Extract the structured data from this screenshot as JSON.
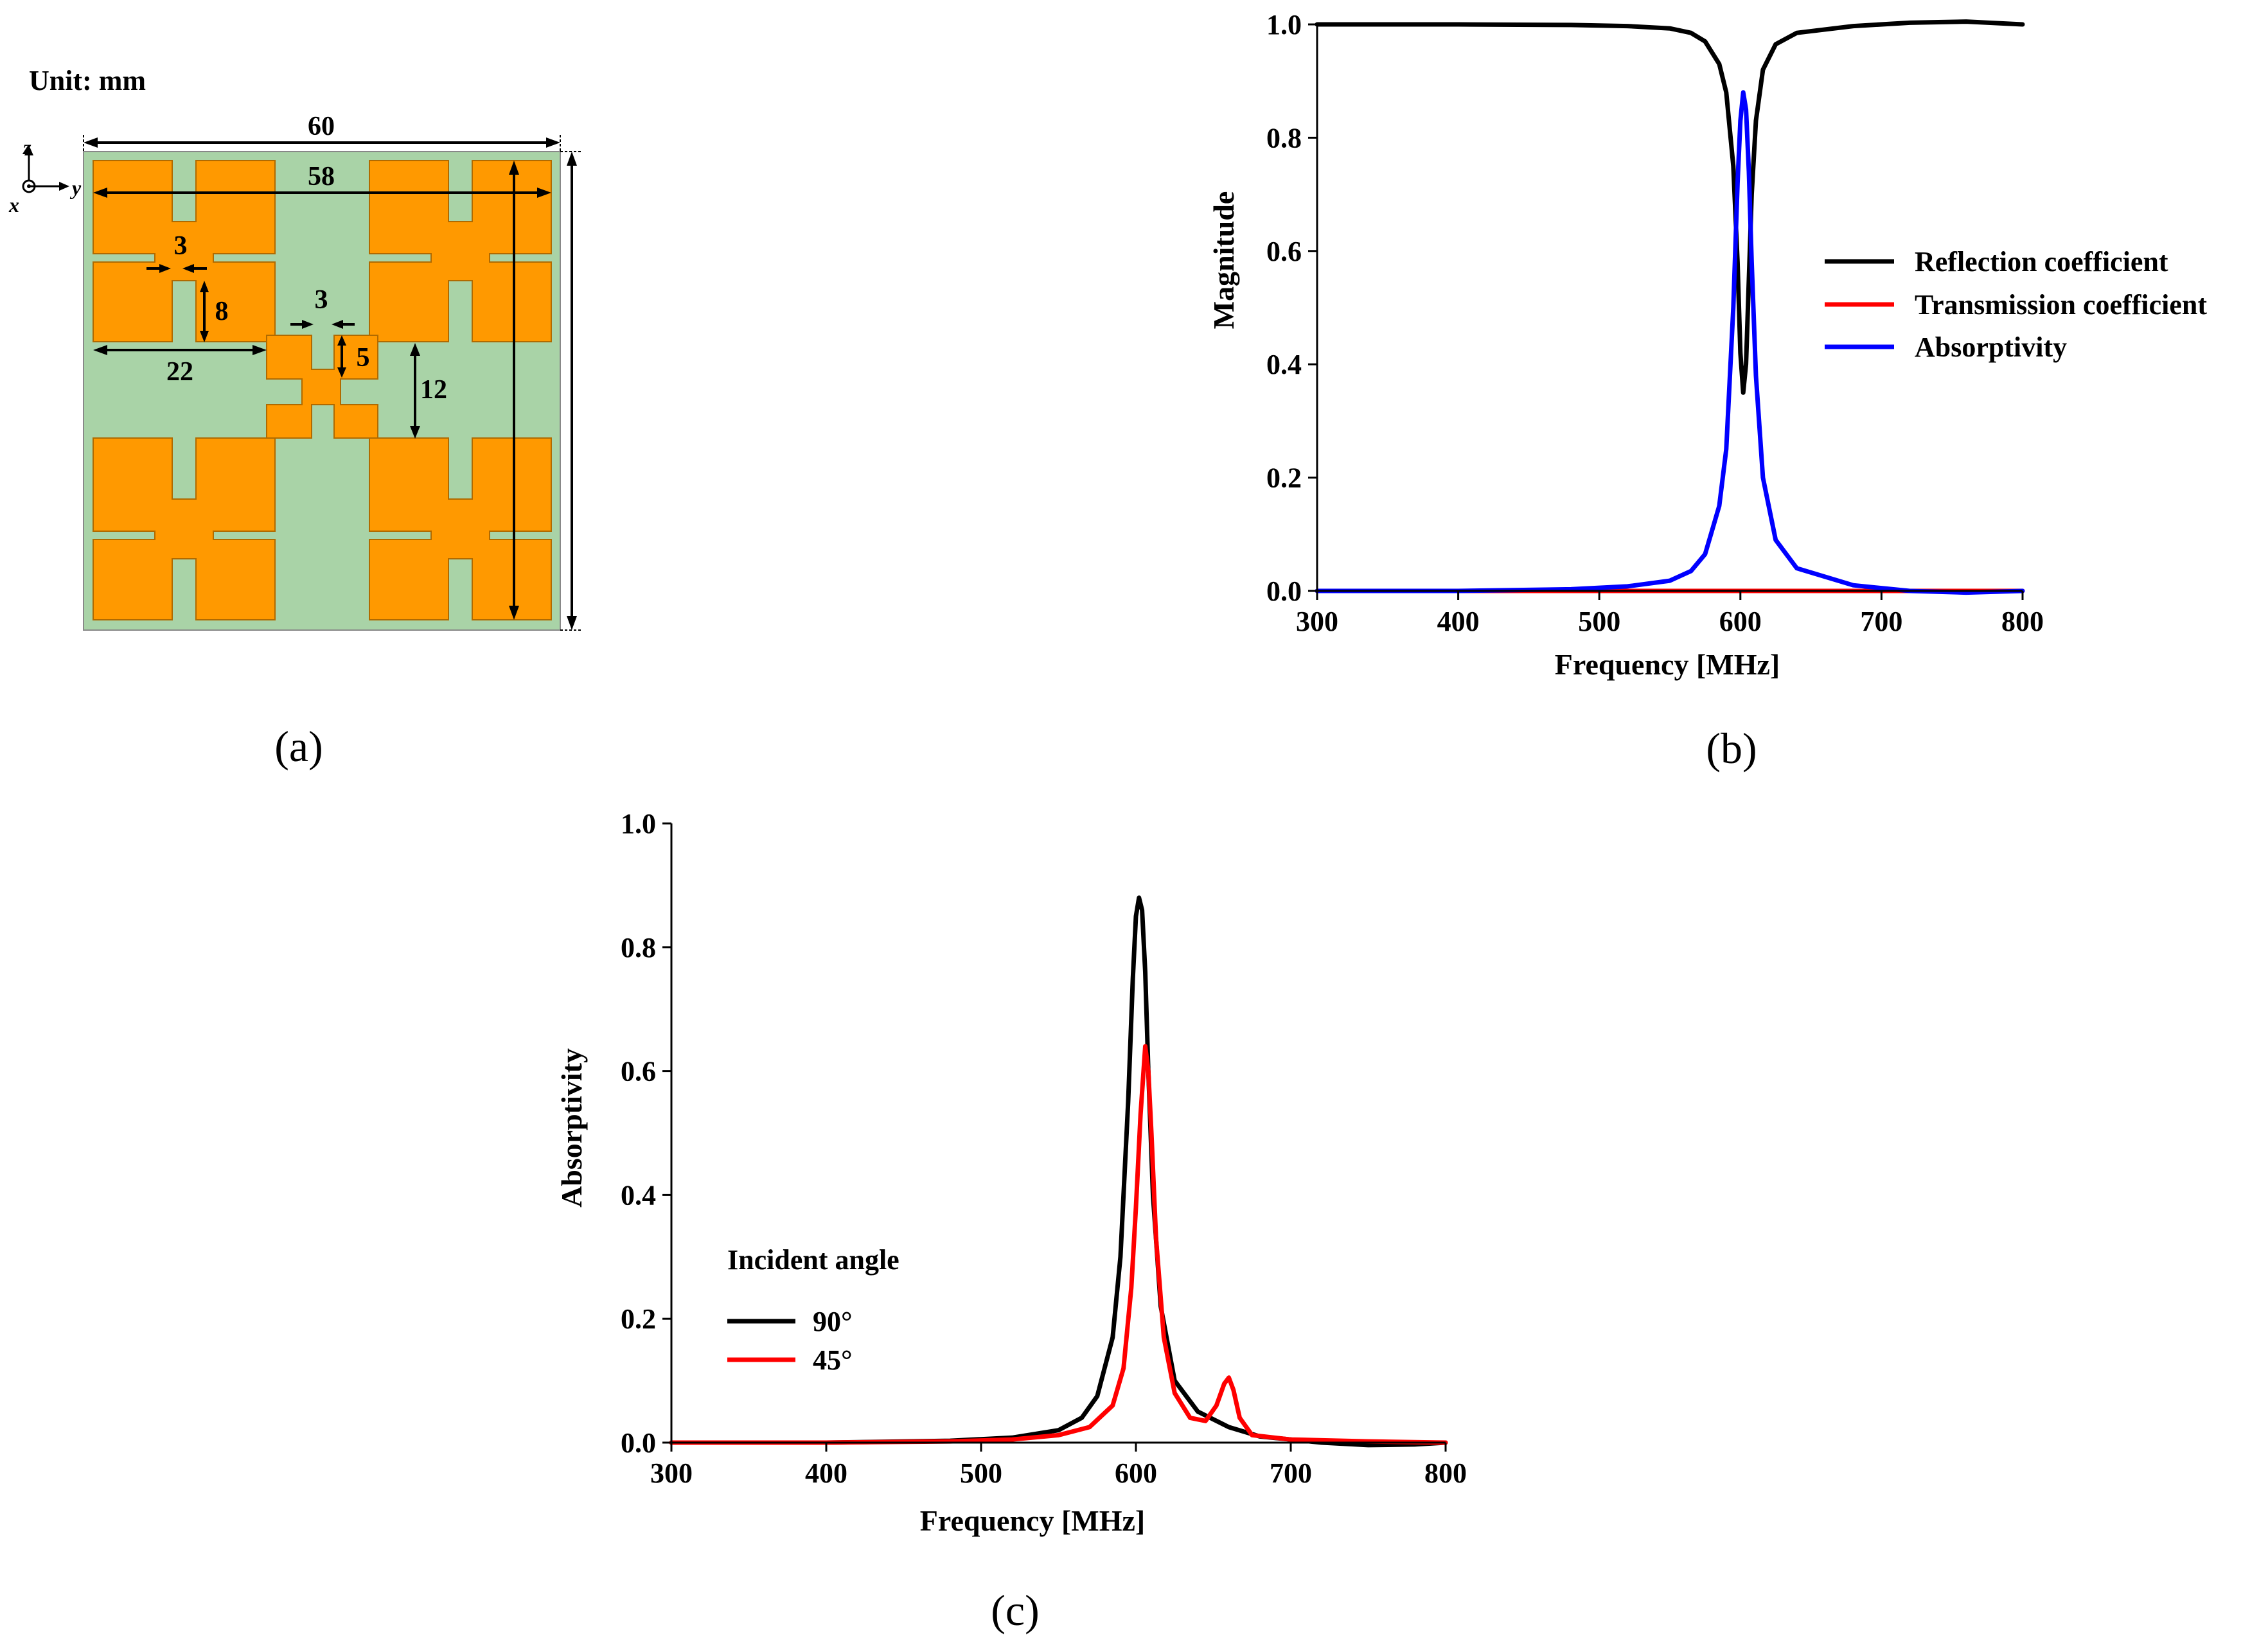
{
  "panels": {
    "a": {
      "label": "(a)",
      "unit_label": "Unit: mm",
      "axes": {
        "z": "z",
        "x": "x",
        "y": "y"
      },
      "dimensions": {
        "d60": "60",
        "d58": "58",
        "d3a": "3",
        "d8": "8",
        "d22": "22",
        "d3b": "3",
        "d5": "5",
        "d12": "12"
      },
      "colors": {
        "substrate": "#a9d3a7",
        "patch": "#ff9900"
      }
    },
    "b": {
      "label": "(b)"
    },
    "c": {
      "label": "(c)"
    }
  },
  "chart_data": [
    {
      "id": "b",
      "type": "line",
      "title": "",
      "xlabel": "Frequency [MHz]",
      "ylabel": "Magnitude",
      "xlim": [
        300,
        800
      ],
      "ylim": [
        0,
        1.0
      ],
      "xticks": [
        300,
        400,
        500,
        600,
        700,
        800
      ],
      "yticks": [
        0.0,
        0.2,
        0.4,
        0.6,
        0.8,
        1.0
      ],
      "xtick_labels": [
        "300",
        "400",
        "500",
        "600",
        "700",
        "800"
      ],
      "ytick_labels": [
        "0.0",
        "0.2",
        "0.4",
        "0.6",
        "0.8",
        "1.0"
      ],
      "grid": false,
      "legend_position": "center-right",
      "series": [
        {
          "name": "Reflection coefficient",
          "color": "#000000",
          "points": [
            [
              300,
              1.0
            ],
            [
              400,
              1.0
            ],
            [
              480,
              0.999
            ],
            [
              520,
              0.997
            ],
            [
              550,
              0.993
            ],
            [
              565,
              0.985
            ],
            [
              575,
              0.97
            ],
            [
              585,
              0.93
            ],
            [
              590,
              0.88
            ],
            [
              595,
              0.75
            ],
            [
              598,
              0.58
            ],
            [
              600,
              0.42
            ],
            [
              602,
              0.35
            ],
            [
              604,
              0.4
            ],
            [
              606,
              0.55
            ],
            [
              608,
              0.7
            ],
            [
              611,
              0.83
            ],
            [
              616,
              0.92
            ],
            [
              625,
              0.965
            ],
            [
              640,
              0.985
            ],
            [
              680,
              0.997
            ],
            [
              720,
              1.003
            ],
            [
              760,
              1.005
            ],
            [
              800,
              1.0
            ]
          ]
        },
        {
          "name": "Transmission coefficient",
          "color": "#ff0000",
          "points": [
            [
              300,
              0.0
            ],
            [
              800,
              0.0
            ]
          ]
        },
        {
          "name": "Absorptivity",
          "color": "#0000ff",
          "points": [
            [
              300,
              0.0
            ],
            [
              400,
              0.0
            ],
            [
              480,
              0.003
            ],
            [
              520,
              0.008
            ],
            [
              550,
              0.018
            ],
            [
              565,
              0.035
            ],
            [
              575,
              0.065
            ],
            [
              585,
              0.15
            ],
            [
              590,
              0.25
            ],
            [
              595,
              0.5
            ],
            [
              598,
              0.72
            ],
            [
              600,
              0.83
            ],
            [
              602,
              0.88
            ],
            [
              604,
              0.85
            ],
            [
              606,
              0.74
            ],
            [
              608,
              0.58
            ],
            [
              611,
              0.38
            ],
            [
              616,
              0.2
            ],
            [
              625,
              0.09
            ],
            [
              640,
              0.04
            ],
            [
              680,
              0.01
            ],
            [
              720,
              0.0
            ],
            [
              760,
              -0.003
            ],
            [
              800,
              0.0
            ]
          ]
        }
      ]
    },
    {
      "id": "c",
      "type": "line",
      "title": "",
      "xlabel": "Frequency [MHz]",
      "ylabel": "Absorptivity",
      "xlim": [
        300,
        800
      ],
      "ylim": [
        0,
        1.0
      ],
      "xticks": [
        300,
        400,
        500,
        600,
        700,
        800
      ],
      "yticks": [
        0.0,
        0.2,
        0.4,
        0.6,
        0.8,
        1.0
      ],
      "xtick_labels": [
        "300",
        "400",
        "500",
        "600",
        "700",
        "800"
      ],
      "ytick_labels": [
        "0.0",
        "0.2",
        "0.4",
        "0.6",
        "0.8",
        "1.0"
      ],
      "grid": false,
      "legend_title": "Incident angle",
      "legend_position": "lower-left",
      "series": [
        {
          "name": "90°",
          "color": "#000000",
          "points": [
            [
              300,
              0.0
            ],
            [
              400,
              0.0
            ],
            [
              480,
              0.003
            ],
            [
              520,
              0.008
            ],
            [
              550,
              0.02
            ],
            [
              565,
              0.04
            ],
            [
              575,
              0.075
            ],
            [
              585,
              0.17
            ],
            [
              590,
              0.3
            ],
            [
              595,
              0.55
            ],
            [
              598,
              0.75
            ],
            [
              600,
              0.85
            ],
            [
              602,
              0.88
            ],
            [
              604,
              0.86
            ],
            [
              606,
              0.76
            ],
            [
              608,
              0.6
            ],
            [
              611,
              0.4
            ],
            [
              616,
              0.22
            ],
            [
              625,
              0.1
            ],
            [
              640,
              0.05
            ],
            [
              660,
              0.025
            ],
            [
              680,
              0.01
            ],
            [
              720,
              0.0
            ],
            [
              750,
              -0.004
            ],
            [
              780,
              -0.003
            ],
            [
              800,
              0.0
            ]
          ]
        },
        {
          "name": "45°",
          "color": "#ff0000",
          "points": [
            [
              300,
              0.0
            ],
            [
              400,
              0.0
            ],
            [
              480,
              0.002
            ],
            [
              520,
              0.005
            ],
            [
              550,
              0.012
            ],
            [
              570,
              0.025
            ],
            [
              585,
              0.06
            ],
            [
              592,
              0.12
            ],
            [
              597,
              0.25
            ],
            [
              600,
              0.38
            ],
            [
              603,
              0.53
            ],
            [
              606,
              0.64
            ],
            [
              608,
              0.6
            ],
            [
              610,
              0.5
            ],
            [
              613,
              0.33
            ],
            [
              618,
              0.17
            ],
            [
              625,
              0.08
            ],
            [
              635,
              0.04
            ],
            [
              645,
              0.035
            ],
            [
              652,
              0.06
            ],
            [
              657,
              0.095
            ],
            [
              660,
              0.105
            ],
            [
              663,
              0.085
            ],
            [
              667,
              0.04
            ],
            [
              675,
              0.012
            ],
            [
              700,
              0.005
            ],
            [
              750,
              0.002
            ],
            [
              800,
              0.0
            ]
          ]
        }
      ]
    }
  ]
}
